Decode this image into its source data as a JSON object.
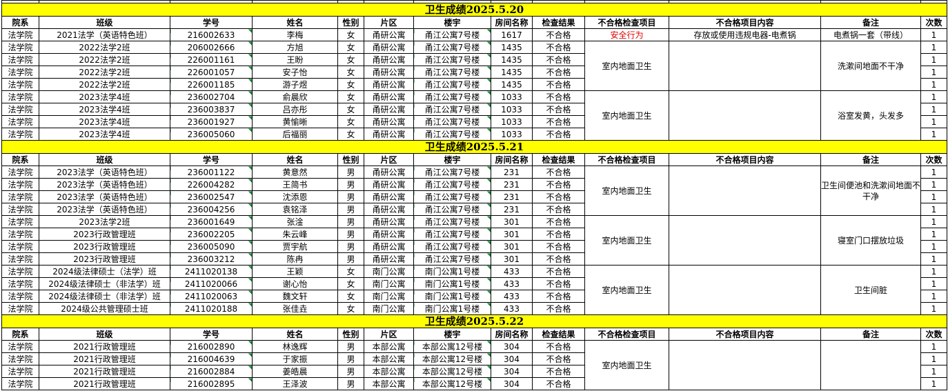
{
  "header": [
    "院系",
    "班级",
    "学号",
    "姓名",
    "性别",
    "片区",
    "楼宇",
    "房间名称",
    "检查结果",
    "不合格检查项目",
    "不合格项目内容",
    "备注",
    "次数"
  ],
  "sections": [
    {
      "title": "卫生成绩2025.5.20",
      "groups": [
        {
          "item": "安全行为",
          "item_color": "#e00000",
          "content": "存放或使用违规电器-电煮锅",
          "remark": "电煮锅一套（带线）",
          "rows": [
            [
              "法学院",
              "2021法学（英语特色班）",
              "216002633",
              "李梅",
              "女",
              "甬研公寓",
              "甬江公寓7号楼",
              "1617",
              "不合格",
              "1"
            ]
          ]
        },
        {
          "item": "室内地面卫生",
          "remark": "洗漱间地面不干净",
          "rows": [
            [
              "法学院",
              "2022法学2班",
              "206002666",
              "方旭",
              "女",
              "甬研公寓",
              "甬江公寓7号楼",
              "1435",
              "不合格",
              "1"
            ],
            [
              "法学院",
              "2022法学2班",
              "226001161",
              "王盼",
              "女",
              "甬研公寓",
              "甬江公寓7号楼",
              "1435",
              "不合格",
              "1"
            ],
            [
              "法学院",
              "2022法学2班",
              "226001057",
              "安子怡",
              "女",
              "甬研公寓",
              "甬江公寓7号楼",
              "1435",
              "不合格",
              "1"
            ],
            [
              "法学院",
              "2022法学2班",
              "226001185",
              "游子煜",
              "女",
              "甬研公寓",
              "甬江公寓7号楼",
              "1435",
              "不合格",
              "1"
            ]
          ]
        },
        {
          "item": "室内地面卫生",
          "remark": "浴室发黄，头发多",
          "rows": [
            [
              "法学院",
              "2023法学4班",
              "236002704",
              "俞晨欣",
              "女",
              "甬研公寓",
              "甬江公寓7号楼",
              "1033",
              "不合格",
              "1"
            ],
            [
              "法学院",
              "2023法学4班",
              "236003837",
              "吕亦彤",
              "女",
              "甬研公寓",
              "甬江公寓7号楼",
              "1033",
              "不合格",
              "1"
            ],
            [
              "法学院",
              "2023法学4班",
              "236001927",
              "黄愉晰",
              "女",
              "甬研公寓",
              "甬江公寓7号楼",
              "1033",
              "不合格",
              "1"
            ],
            [
              "法学院",
              "2023法学4班",
              "236005060",
              "后福丽",
              "女",
              "甬研公寓",
              "甬江公寓7号楼",
              "1033",
              "不合格",
              "1"
            ]
          ]
        }
      ]
    },
    {
      "title": "卫生成绩2025.5.21",
      "groups": [
        {
          "item": "室内地面卫生",
          "remark": "卫生间便池和洗漱间地面不干净",
          "rows": [
            [
              "法学院",
              "2023法学（英语特色班）",
              "236001122",
              "黄意然",
              "男",
              "甬研公寓",
              "甬江公寓7号楼",
              "231",
              "不合格",
              "1"
            ],
            [
              "法学院",
              "2023法学（英语特色班）",
              "226004282",
              "王简书",
              "男",
              "甬研公寓",
              "甬江公寓7号楼",
              "231",
              "不合格",
              "1"
            ],
            [
              "法学院",
              "2023法学（英语特色班）",
              "236002547",
              "沈添恩",
              "男",
              "甬研公寓",
              "甬江公寓7号楼",
              "231",
              "不合格",
              "1"
            ],
            [
              "法学院",
              "2023法学（英语特色班）",
              "236004256",
              "袁铭泽",
              "男",
              "甬研公寓",
              "甬江公寓7号楼",
              "231",
              "不合格",
              "1"
            ]
          ]
        },
        {
          "item": "室内地面卫生",
          "remark": "寝室门口摆放垃圾",
          "rows": [
            [
              "法学院",
              "2023法学2班",
              "236001649",
              "张淦",
              "男",
              "甬研公寓",
              "甬江公寓7号楼",
              "301",
              "不合格",
              "1"
            ],
            [
              "法学院",
              "2023行政管理班",
              "236002205",
              "朱云峰",
              "男",
              "甬研公寓",
              "甬江公寓7号楼",
              "301",
              "不合格",
              "1"
            ],
            [
              "法学院",
              "2023行政管理班",
              "236005090",
              "贾宇航",
              "男",
              "甬研公寓",
              "甬江公寓7号楼",
              "301",
              "不合格",
              "1"
            ],
            [
              "法学院",
              "2023行政管理班",
              "236003212",
              "陈冉",
              "男",
              "甬研公寓",
              "甬江公寓7号楼",
              "301",
              "不合格",
              "1"
            ]
          ]
        },
        {
          "item": "室内地面卫生",
          "remark": "卫生间脏",
          "rows": [
            [
              "法学院",
              "2024级法律硕士（法学）班",
              "2411020138",
              "王颖",
              "女",
              "南门公寓",
              "南门公寓1号楼",
              "433",
              "不合格",
              "1"
            ],
            [
              "法学院",
              "2024级法律硕士（非法学）班",
              "2411020066",
              "谢心怡",
              "女",
              "南门公寓",
              "南门公寓1号楼",
              "433",
              "不合格",
              "1"
            ],
            [
              "法学院",
              "2024级法律硕士（非法学）班",
              "2411020063",
              "魏文轩",
              "女",
              "南门公寓",
              "南门公寓1号楼",
              "433",
              "不合格",
              "1"
            ],
            [
              "法学院",
              "2024级公共管理硕士班",
              "2411020188",
              "张佳垚",
              "女",
              "南门公寓",
              "南门公寓1号楼",
              "433",
              "不合格",
              "1"
            ]
          ]
        }
      ]
    },
    {
      "title": "卫生成绩2025.5.22",
      "groups": [
        {
          "item": "室内地面卫生",
          "rows": [
            [
              "法学院",
              "2021行政管理班",
              "216002890",
              "林逸辉",
              "男",
              "本部公寓",
              "本部公寓12号楼",
              "304",
              "不合格",
              "1"
            ],
            [
              "法学院",
              "2021行政管理班",
              "216004639",
              "于家振",
              "男",
              "本部公寓",
              "本部公寓12号楼",
              "304",
              "不合格",
              "1"
            ],
            [
              "法学院",
              "2021行政管理班",
              "216002884",
              "姜皓晨",
              "男",
              "本部公寓",
              "本部公寓12号楼",
              "304",
              "不合格",
              "1"
            ],
            [
              "法学院",
              "2021行政管理班",
              "216002895",
              "王泽波",
              "男",
              "本部公寓",
              "本部公寓12号楼",
              "304",
              "不合格",
              "1"
            ]
          ]
        }
      ]
    }
  ]
}
